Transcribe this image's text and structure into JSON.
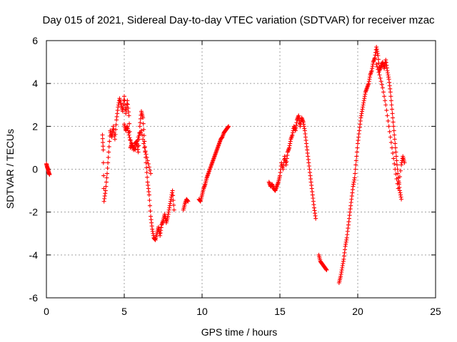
{
  "chart_data": {
    "type": "scatter",
    "title": "Day 015 of 2021, Sidereal Day-to-day VTEC variation (SDTVAR) for receiver mzac",
    "xlabel": "GPS time / hours",
    "ylabel": "SDTVAR / TECUs",
    "xlim": [
      0,
      25
    ],
    "ylim": [
      -6,
      6
    ],
    "xticks": [
      0,
      5,
      10,
      15,
      20,
      25
    ],
    "yticks": [
      -6,
      -4,
      -2,
      0,
      2,
      4,
      6
    ],
    "grid": true,
    "marker": "+",
    "color": "#ff0000",
    "series": [
      {
        "name": "SDTVAR",
        "segments": [
          {
            "x": [
              0.0,
              0.05,
              0.1,
              0.15,
              0.2
            ],
            "y": [
              0.25,
              0.1,
              0.0,
              -0.15,
              -0.25
            ]
          },
          {
            "x": [
              3.6,
              3.65,
              3.7,
              3.8,
              3.9,
              4.0,
              4.1,
              4.2,
              4.3,
              4.4,
              4.5,
              4.6,
              4.7,
              4.8,
              4.9,
              5.0,
              5.1,
              5.2,
              5.3,
              5.4,
              5.5,
              5.6,
              5.7,
              5.8,
              5.9,
              6.0,
              6.1,
              6.2,
              6.3,
              6.4,
              6.5,
              6.6,
              6.7,
              6.8,
              6.9,
              7.0,
              7.1,
              7.2,
              7.3,
              7.4,
              7.5,
              7.6,
              7.7,
              7.8,
              7.9,
              8.0,
              8.1,
              8.2
            ],
            "y": [
              1.6,
              0.9,
              -1.5,
              -1.0,
              -0.2,
              0.8,
              1.8,
              1.5,
              2.0,
              1.4,
              2.3,
              2.9,
              3.3,
              3.0,
              2.7,
              3.4,
              2.6,
              3.2,
              2.5,
              1.0,
              1.2,
              0.9,
              1.2,
              1.3,
              0.8,
              2.0,
              2.7,
              2.4,
              1.3,
              0.3,
              -0.6,
              -1.2,
              -2.2,
              -2.8,
              -3.2,
              -3.3,
              -3.0,
              -2.7,
              -3.1,
              -2.6,
              -2.4,
              -2.1,
              -2.5,
              -2.2,
              -1.8,
              -1.4,
              -1.0,
              -1.9
            ]
          },
          {
            "x": [
              8.8,
              8.9,
              9.0,
              9.1
            ],
            "y": [
              -1.9,
              -1.6,
              -1.4,
              -1.5
            ]
          },
          {
            "x": [
              9.8,
              9.9,
              10.0,
              10.1,
              10.2,
              10.3,
              10.4,
              10.5,
              10.6,
              10.7,
              10.8,
              10.9,
              11.0,
              11.1,
              11.2,
              11.3,
              11.4,
              11.5,
              11.6,
              11.7
            ],
            "y": [
              -1.4,
              -1.5,
              -1.2,
              -0.9,
              -0.7,
              -0.4,
              -0.2,
              0.0,
              0.2,
              0.4,
              0.6,
              0.8,
              1.0,
              1.2,
              1.4,
              1.5,
              1.7,
              1.8,
              1.9,
              2.0
            ]
          },
          {
            "x": [
              14.3,
              14.4,
              14.5,
              14.6,
              14.7,
              14.8,
              14.9,
              15.0,
              15.1,
              15.2,
              15.3,
              15.4,
              15.5,
              15.6,
              15.7,
              15.8,
              15.9,
              16.0,
              16.1,
              16.2,
              16.3,
              16.4,
              16.5,
              16.6,
              16.7,
              16.8,
              16.9,
              17.0,
              17.1,
              17.2,
              17.3
            ],
            "y": [
              -0.6,
              -0.8,
              -0.7,
              -0.9,
              -1.0,
              -0.8,
              -0.6,
              -0.3,
              0.3,
              0.0,
              0.6,
              0.2,
              0.8,
              1.0,
              1.4,
              1.6,
              2.0,
              1.8,
              2.3,
              2.5,
              2.0,
              2.4,
              2.2,
              1.8,
              1.2,
              0.6,
              0.0,
              -0.6,
              -1.2,
              -1.8,
              -2.3
            ]
          },
          {
            "x": [
              17.5,
              17.6,
              17.7,
              17.8,
              17.9,
              18.0
            ],
            "y": [
              -4.0,
              -4.3,
              -4.4,
              -4.5,
              -4.6,
              -4.7
            ]
          },
          {
            "x": [
              18.8,
              18.9,
              19.0,
              19.1,
              19.2,
              19.3,
              19.4,
              19.5,
              19.6,
              19.7,
              19.8,
              19.9,
              20.0,
              20.1,
              20.2,
              20.3,
              20.4,
              20.5,
              20.6,
              20.7,
              20.8,
              20.9,
              21.0,
              21.1,
              21.2,
              21.3,
              21.4,
              21.5,
              21.6,
              21.7,
              21.8,
              21.9,
              22.0,
              22.1,
              22.2,
              22.3,
              22.4,
              22.5,
              22.6,
              22.7,
              22.8
            ],
            "y": [
              -5.3,
              -5.0,
              -4.6,
              -4.2,
              -3.6,
              -3.2,
              -2.6,
              -2.0,
              -1.4,
              -0.8,
              -0.4,
              0.4,
              1.2,
              1.8,
              2.4,
              2.8,
              3.2,
              3.6,
              3.8,
              4.0,
              4.4,
              4.6,
              5.0,
              5.2,
              5.7,
              5.3,
              4.6,
              4.8,
              5.0,
              4.7,
              5.1,
              4.6,
              4.2,
              3.6,
              2.8,
              2.0,
              1.2,
              0.4,
              -0.4,
              -1.0,
              -1.4
            ]
          },
          {
            "x": [
              21.2,
              21.4,
              21.6,
              21.8,
              22.0,
              22.2,
              22.4,
              22.6,
              22.8,
              22.9,
              23.0
            ],
            "y": [
              4.9,
              4.4,
              3.8,
              3.0,
              2.0,
              1.0,
              0.0,
              -0.9,
              0.2,
              0.6,
              0.3
            ]
          },
          {
            "x": [
              5.0,
              5.1,
              5.2,
              5.3,
              5.5,
              5.7,
              5.9,
              6.1,
              6.3,
              6.5,
              6.7
            ],
            "y": [
              2.1,
              1.8,
              2.0,
              1.6,
              1.1,
              0.9,
              1.5,
              1.8,
              1.0,
              0.4,
              -0.2
            ]
          }
        ]
      }
    ]
  }
}
